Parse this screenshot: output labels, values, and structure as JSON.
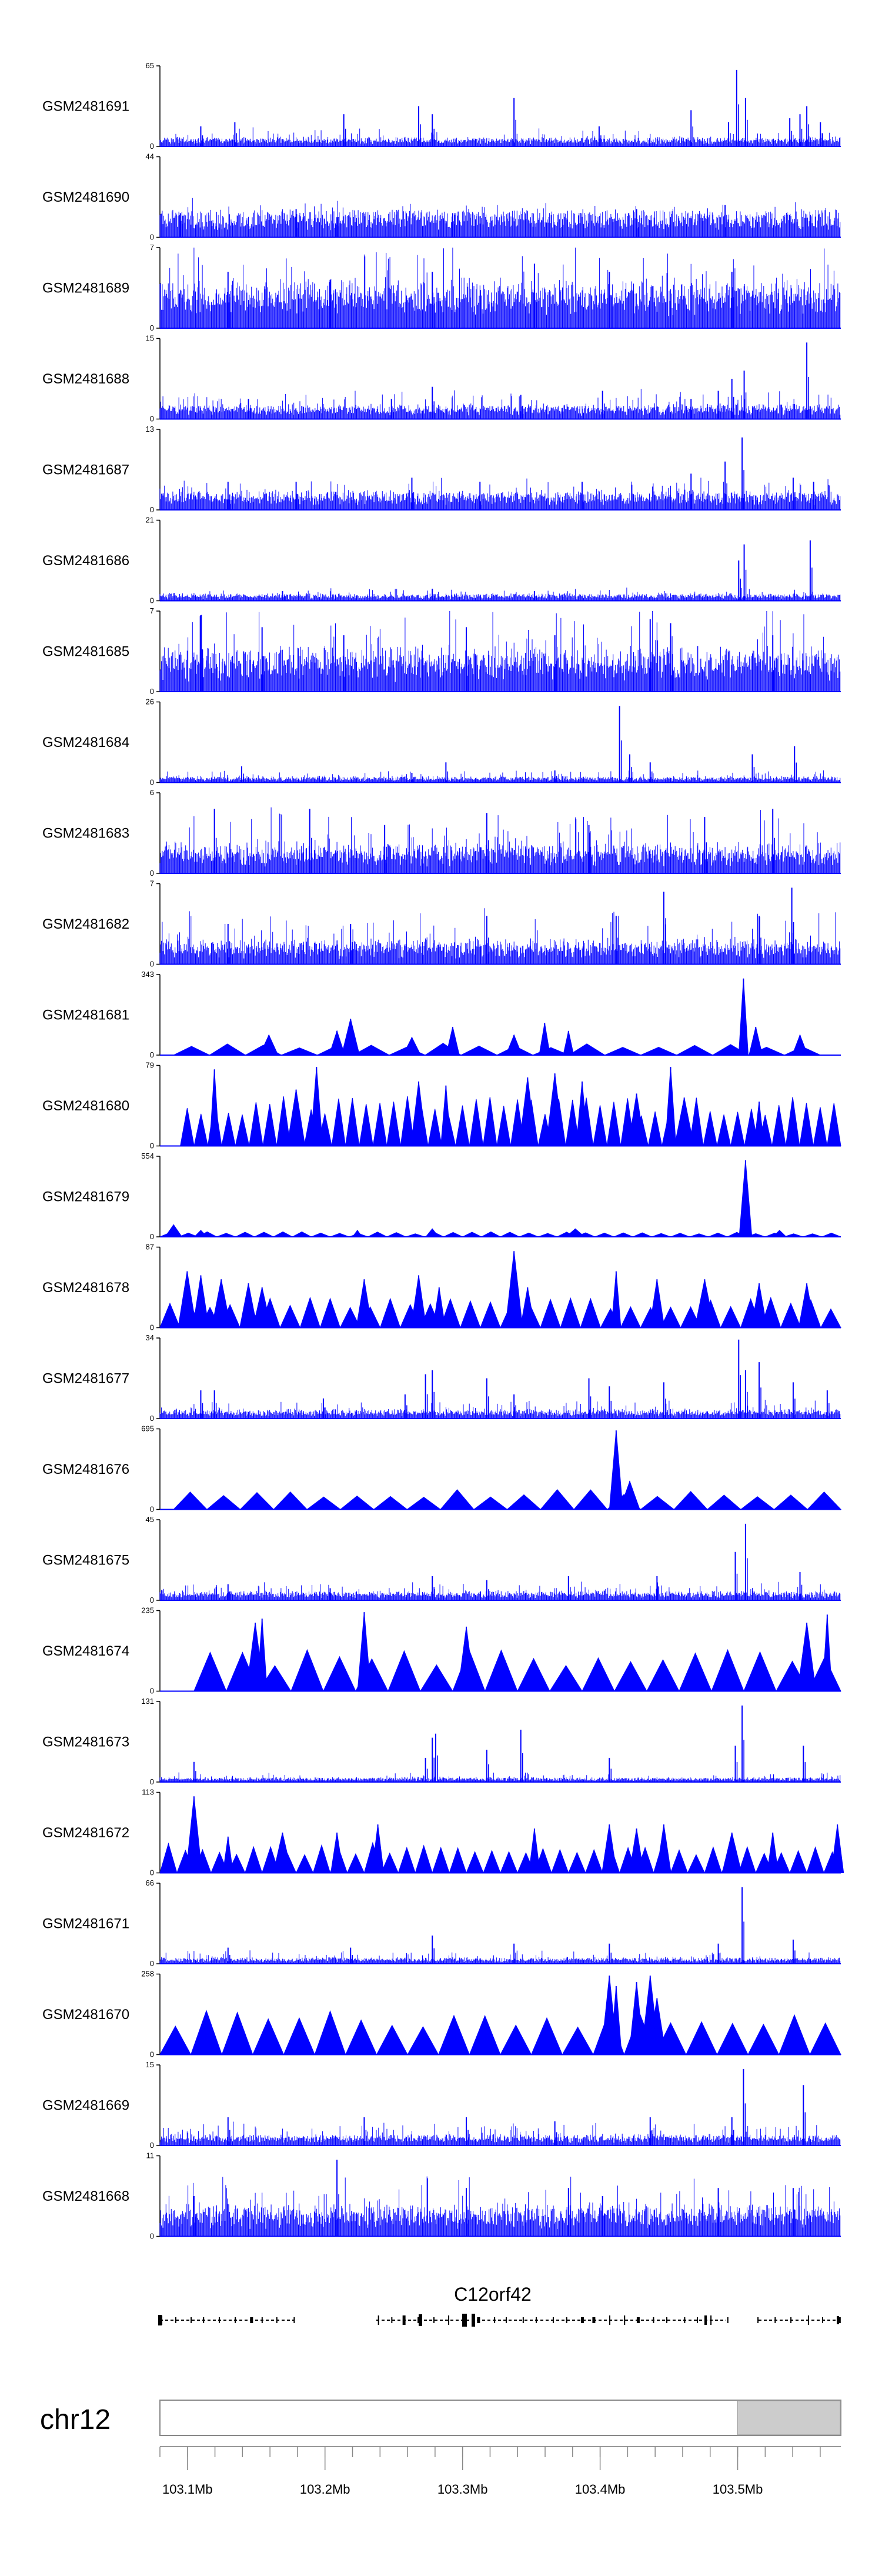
{
  "chart_data": {
    "type": "area",
    "title": "",
    "color": "#0000ff",
    "genome": {
      "chromosome": "chr12",
      "gene": "C12orf42",
      "x_range_mb": [
        103.08,
        103.575
      ],
      "highlight_start_mb": 103.5,
      "axis_ticks": [
        {
          "value": 103.1,
          "label": "103.1Mb"
        },
        {
          "value": 103.2,
          "label": "103.2Mb"
        },
        {
          "value": 103.3,
          "label": "103.3Mb"
        },
        {
          "value": 103.4,
          "label": "103.4Mb"
        },
        {
          "value": 103.5,
          "label": "103.5Mb"
        }
      ]
    },
    "tracks": [
      {
        "name": "GSM2481691",
        "max": 65,
        "style": "dense",
        "base": 0.06,
        "noise": 0.08,
        "peaks": [
          [
            0.06,
            0.25
          ],
          [
            0.11,
            0.3
          ],
          [
            0.27,
            0.4
          ],
          [
            0.38,
            0.5
          ],
          [
            0.4,
            0.4
          ],
          [
            0.52,
            0.6
          ],
          [
            0.645,
            0.25
          ],
          [
            0.78,
            0.45
          ],
          [
            0.835,
            0.3
          ],
          [
            0.847,
            0.95
          ],
          [
            0.86,
            0.6
          ],
          [
            0.925,
            0.35
          ],
          [
            0.94,
            0.4
          ],
          [
            0.95,
            0.5
          ],
          [
            0.97,
            0.3
          ]
        ]
      },
      {
        "name": "GSM2481690",
        "max": 44,
        "style": "dense",
        "base": 0.22,
        "noise": 0.1,
        "peaks": [
          [
            0.03,
            0.3
          ],
          [
            0.2,
            0.35
          ],
          [
            0.26,
            0.25
          ],
          [
            0.43,
            0.3
          ],
          [
            0.7,
            0.35
          ],
          [
            0.83,
            0.4
          ]
        ]
      },
      {
        "name": "GSM2481689",
        "max": 7,
        "style": "dense",
        "base": 0.35,
        "noise": 0.3,
        "peaks": [
          [
            0.1,
            0.7
          ],
          [
            0.25,
            0.6
          ],
          [
            0.4,
            0.7
          ],
          [
            0.55,
            0.8
          ],
          [
            0.66,
            0.7
          ],
          [
            0.84,
            0.7
          ]
        ]
      },
      {
        "name": "GSM2481688",
        "max": 15,
        "style": "dense",
        "base": 0.1,
        "noise": 0.12,
        "peaks": [
          [
            0.13,
            0.25
          ],
          [
            0.34,
            0.25
          ],
          [
            0.4,
            0.4
          ],
          [
            0.53,
            0.3
          ],
          [
            0.65,
            0.35
          ],
          [
            0.78,
            0.25
          ],
          [
            0.82,
            0.35
          ],
          [
            0.84,
            0.5
          ],
          [
            0.858,
            0.6
          ],
          [
            0.95,
            0.95
          ]
        ]
      },
      {
        "name": "GSM2481687",
        "max": 13,
        "style": "dense",
        "base": 0.14,
        "noise": 0.12,
        "peaks": [
          [
            0.1,
            0.35
          ],
          [
            0.2,
            0.35
          ],
          [
            0.37,
            0.4
          ],
          [
            0.47,
            0.35
          ],
          [
            0.62,
            0.35
          ],
          [
            0.78,
            0.45
          ],
          [
            0.83,
            0.6
          ],
          [
            0.855,
            0.9
          ],
          [
            0.93,
            0.4
          ],
          [
            0.96,
            0.35
          ]
        ]
      },
      {
        "name": "GSM2481686",
        "max": 21,
        "style": "dense",
        "base": 0.05,
        "noise": 0.05,
        "peaks": [
          [
            0.18,
            0.12
          ],
          [
            0.4,
            0.15
          ],
          [
            0.55,
            0.12
          ],
          [
            0.85,
            0.5
          ],
          [
            0.858,
            0.7
          ],
          [
            0.955,
            0.75
          ]
        ]
      },
      {
        "name": "GSM2481685",
        "max": 7,
        "style": "dense",
        "base": 0.3,
        "noise": 0.35,
        "peaks": [
          [
            0.06,
            0.95
          ],
          [
            0.15,
            0.8
          ],
          [
            0.27,
            0.7
          ],
          [
            0.45,
            0.8
          ],
          [
            0.58,
            0.7
          ],
          [
            0.72,
            0.9
          ],
          [
            0.75,
            0.85
          ],
          [
            0.9,
            0.7
          ]
        ]
      },
      {
        "name": "GSM2481684",
        "max": 26,
        "style": "dense",
        "base": 0.04,
        "noise": 0.05,
        "peaks": [
          [
            0.12,
            0.2
          ],
          [
            0.37,
            0.12
          ],
          [
            0.42,
            0.25
          ],
          [
            0.58,
            0.15
          ],
          [
            0.675,
            0.95
          ],
          [
            0.69,
            0.35
          ],
          [
            0.72,
            0.25
          ],
          [
            0.87,
            0.35
          ],
          [
            0.932,
            0.45
          ]
        ]
      },
      {
        "name": "GSM2481683",
        "max": 6,
        "style": "dense",
        "base": 0.18,
        "noise": 0.3,
        "peaks": [
          [
            0.08,
            0.8
          ],
          [
            0.22,
            0.8
          ],
          [
            0.33,
            0.6
          ],
          [
            0.48,
            0.75
          ],
          [
            0.63,
            0.6
          ],
          [
            0.8,
            0.7
          ],
          [
            0.9,
            0.8
          ]
        ]
      },
      {
        "name": "GSM2481682",
        "max": 7,
        "style": "dense",
        "base": 0.15,
        "noise": 0.25,
        "peaks": [
          [
            0.1,
            0.5
          ],
          [
            0.28,
            0.5
          ],
          [
            0.48,
            0.6
          ],
          [
            0.67,
            0.6
          ],
          [
            0.74,
            0.9
          ],
          [
            0.88,
            0.6
          ],
          [
            0.928,
            0.95
          ]
        ]
      },
      {
        "name": "GSM2481681",
        "max": 343,
        "style": "sparse",
        "start": 0.02,
        "end": 0.97,
        "tri": 0.12,
        "seg": 18,
        "peaks": [
          [
            0.16,
            0.25
          ],
          [
            0.26,
            0.3
          ],
          [
            0.28,
            0.45
          ],
          [
            0.37,
            0.22
          ],
          [
            0.43,
            0.35
          ],
          [
            0.52,
            0.25
          ],
          [
            0.565,
            0.4
          ],
          [
            0.6,
            0.3
          ],
          [
            0.857,
            0.95
          ],
          [
            0.875,
            0.35
          ],
          [
            0.94,
            0.25
          ]
        ]
      },
      {
        "name": "GSM2481680",
        "max": 79,
        "style": "sparse",
        "start": 0.03,
        "end": 1.0,
        "tri": 0.5,
        "seg": 48,
        "peaks": [
          [
            0.08,
            0.95
          ],
          [
            0.2,
            0.7
          ],
          [
            0.23,
            0.98
          ],
          [
            0.38,
            0.8
          ],
          [
            0.42,
            0.75
          ],
          [
            0.54,
            0.85
          ],
          [
            0.58,
            0.9
          ],
          [
            0.62,
            0.8
          ],
          [
            0.7,
            0.65
          ],
          [
            0.75,
            0.98
          ],
          [
            0.77,
            0.6
          ],
          [
            0.88,
            0.55
          ]
        ]
      },
      {
        "name": "GSM2481679",
        "max": 554,
        "style": "sparse",
        "start": 0.0,
        "end": 1.0,
        "tri": 0.05,
        "seg": 36,
        "peaks": [
          [
            0.02,
            0.15
          ],
          [
            0.06,
            0.08
          ],
          [
            0.29,
            0.08
          ],
          [
            0.4,
            0.1
          ],
          [
            0.61,
            0.1
          ],
          [
            0.86,
            0.95
          ],
          [
            0.91,
            0.08
          ]
        ]
      },
      {
        "name": "GSM2481678",
        "max": 87,
        "style": "sparse",
        "start": 0.0,
        "end": 1.0,
        "tri": 0.3,
        "seg": 34,
        "peaks": [
          [
            0.04,
            0.7
          ],
          [
            0.06,
            0.65
          ],
          [
            0.09,
            0.6
          ],
          [
            0.13,
            0.55
          ],
          [
            0.15,
            0.5
          ],
          [
            0.3,
            0.6
          ],
          [
            0.38,
            0.65
          ],
          [
            0.41,
            0.5
          ],
          [
            0.52,
            0.95
          ],
          [
            0.54,
            0.5
          ],
          [
            0.67,
            0.7
          ],
          [
            0.73,
            0.6
          ],
          [
            0.8,
            0.6
          ],
          [
            0.88,
            0.55
          ],
          [
            0.95,
            0.55
          ]
        ]
      },
      {
        "name": "GSM2481677",
        "max": 34,
        "style": "dense",
        "base": 0.06,
        "noise": 0.08,
        "peaks": [
          [
            0.06,
            0.35
          ],
          [
            0.08,
            0.35
          ],
          [
            0.24,
            0.25
          ],
          [
            0.36,
            0.3
          ],
          [
            0.39,
            0.55
          ],
          [
            0.4,
            0.6
          ],
          [
            0.48,
            0.5
          ],
          [
            0.52,
            0.3
          ],
          [
            0.63,
            0.5
          ],
          [
            0.66,
            0.4
          ],
          [
            0.74,
            0.45
          ],
          [
            0.85,
            0.98
          ],
          [
            0.86,
            0.6
          ],
          [
            0.88,
            0.7
          ],
          [
            0.93,
            0.45
          ],
          [
            0.98,
            0.35
          ]
        ]
      },
      {
        "name": "GSM2481676",
        "max": 695,
        "style": "sparse",
        "start": 0.02,
        "end": 1.0,
        "tri": 0.2,
        "seg": 20,
        "peaks": [
          [
            0.67,
            0.98
          ],
          [
            0.69,
            0.35
          ]
        ]
      },
      {
        "name": "GSM2481675",
        "max": 45,
        "style": "dense",
        "base": 0.06,
        "noise": 0.08,
        "peaks": [
          [
            0.1,
            0.2
          ],
          [
            0.25,
            0.15
          ],
          [
            0.4,
            0.3
          ],
          [
            0.48,
            0.25
          ],
          [
            0.6,
            0.3
          ],
          [
            0.73,
            0.3
          ],
          [
            0.845,
            0.6
          ],
          [
            0.86,
            0.95
          ],
          [
            0.94,
            0.35
          ]
        ]
      },
      {
        "name": "GSM2481674",
        "max": 235,
        "style": "sparse",
        "start": 0.05,
        "end": 1.0,
        "tri": 0.42,
        "seg": 20,
        "peaks": [
          [
            0.14,
            0.85
          ],
          [
            0.15,
            0.9
          ],
          [
            0.3,
            0.98
          ],
          [
            0.45,
            0.8
          ],
          [
            0.95,
            0.85
          ],
          [
            0.98,
            0.95
          ]
        ]
      },
      {
        "name": "GSM2481673",
        "max": 131,
        "style": "dense",
        "base": 0.03,
        "noise": 0.04,
        "peaks": [
          [
            0.05,
            0.25
          ],
          [
            0.39,
            0.3
          ],
          [
            0.4,
            0.55
          ],
          [
            0.405,
            0.6
          ],
          [
            0.48,
            0.4
          ],
          [
            0.53,
            0.65
          ],
          [
            0.66,
            0.3
          ],
          [
            0.845,
            0.45
          ],
          [
            0.855,
            0.95
          ],
          [
            0.945,
            0.45
          ]
        ]
      },
      {
        "name": "GSM2481672",
        "max": 113,
        "style": "sparse",
        "start": 0.0,
        "end": 1.0,
        "tri": 0.3,
        "seg": 40,
        "peaks": [
          [
            0.05,
            0.95
          ],
          [
            0.1,
            0.45
          ],
          [
            0.18,
            0.5
          ],
          [
            0.26,
            0.5
          ],
          [
            0.32,
            0.6
          ],
          [
            0.55,
            0.55
          ],
          [
            0.66,
            0.6
          ],
          [
            0.7,
            0.55
          ],
          [
            0.74,
            0.6
          ],
          [
            0.84,
            0.5
          ],
          [
            0.9,
            0.5
          ],
          [
            0.995,
            0.6
          ]
        ]
      },
      {
        "name": "GSM2481671",
        "max": 66,
        "style": "dense",
        "base": 0.04,
        "noise": 0.06,
        "peaks": [
          [
            0.1,
            0.2
          ],
          [
            0.28,
            0.2
          ],
          [
            0.4,
            0.35
          ],
          [
            0.52,
            0.25
          ],
          [
            0.66,
            0.25
          ],
          [
            0.82,
            0.25
          ],
          [
            0.855,
            0.95
          ],
          [
            0.93,
            0.3
          ]
        ]
      },
      {
        "name": "GSM2481670",
        "max": 258,
        "style": "sparse",
        "start": 0.0,
        "end": 1.0,
        "tri": 0.45,
        "seg": 22,
        "peaks": [
          [
            0.66,
            0.98
          ],
          [
            0.67,
            0.85
          ],
          [
            0.7,
            0.9
          ],
          [
            0.72,
            0.98
          ],
          [
            0.73,
            0.7
          ]
        ]
      },
      {
        "name": "GSM2481669",
        "max": 15,
        "style": "dense",
        "base": 0.07,
        "noise": 0.1,
        "peaks": [
          [
            0.1,
            0.35
          ],
          [
            0.3,
            0.35
          ],
          [
            0.45,
            0.35
          ],
          [
            0.58,
            0.3
          ],
          [
            0.72,
            0.35
          ],
          [
            0.84,
            0.35
          ],
          [
            0.857,
            0.95
          ],
          [
            0.945,
            0.75
          ]
        ]
      },
      {
        "name": "GSM2481668",
        "max": 11,
        "style": "dense",
        "base": 0.22,
        "noise": 0.25,
        "peaks": [
          [
            0.05,
            0.5
          ],
          [
            0.26,
            0.95
          ],
          [
            0.45,
            0.6
          ],
          [
            0.6,
            0.6
          ],
          [
            0.65,
            0.5
          ],
          [
            0.82,
            0.6
          ],
          [
            0.93,
            0.6
          ]
        ]
      }
    ]
  }
}
